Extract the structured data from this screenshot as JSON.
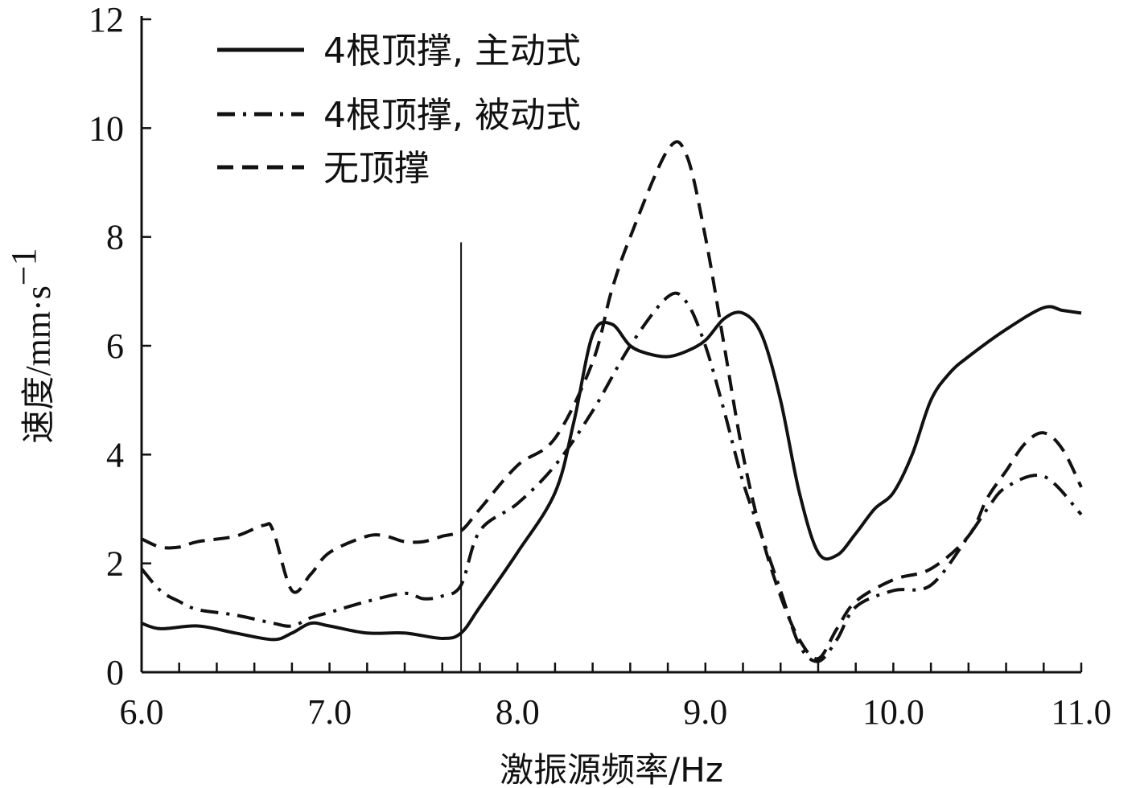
{
  "chart_data": {
    "type": "line",
    "title": "",
    "xlabel": "激振源频率/Hz",
    "ylabel_parts": {
      "cn": "速度",
      "unit": "/mm·s",
      "sup": "−1"
    },
    "xlim": [
      6.0,
      11.0
    ],
    "ylim": [
      0,
      12
    ],
    "x_ticks": [
      6.0,
      7.0,
      8.0,
      9.0,
      10.0,
      11.0
    ],
    "x_tick_labels": [
      "6.0",
      "7.0",
      "8.0",
      "9.0",
      "10.0",
      "11.0"
    ],
    "x_minor_step": 0.2,
    "y_ticks": [
      0,
      2,
      4,
      6,
      8,
      10,
      12
    ],
    "y_tick_labels": [
      "0",
      "2",
      "4",
      "6",
      "8",
      "10",
      "12"
    ],
    "grid": false,
    "legend_position": "top-left",
    "reference_line_x": 7.7,
    "series": [
      {
        "name": "4根顶撑, 主动式",
        "style": "solid",
        "x": [
          6.0,
          6.1,
          6.3,
          6.5,
          6.7,
          6.8,
          6.9,
          7.0,
          7.2,
          7.4,
          7.6,
          7.7,
          7.8,
          8.0,
          8.2,
          8.3,
          8.4,
          8.5,
          8.6,
          8.7,
          8.8,
          8.9,
          9.0,
          9.1,
          9.2,
          9.3,
          9.4,
          9.5,
          9.6,
          9.7,
          9.8,
          9.9,
          10.0,
          10.1,
          10.2,
          10.3,
          10.4,
          10.6,
          10.8,
          10.9,
          11.0
        ],
        "y": [
          0.9,
          0.8,
          0.85,
          0.72,
          0.6,
          0.72,
          0.9,
          0.85,
          0.72,
          0.72,
          0.62,
          0.72,
          1.2,
          2.2,
          3.3,
          4.6,
          6.2,
          6.4,
          6.0,
          5.85,
          5.8,
          5.9,
          6.1,
          6.5,
          6.6,
          6.2,
          5.0,
          3.3,
          2.2,
          2.15,
          2.55,
          3.0,
          3.3,
          4.0,
          5.0,
          5.5,
          5.8,
          6.3,
          6.7,
          6.65,
          6.6
        ]
      },
      {
        "name": "4根顶撑, 被动式",
        "style": "dash-dot",
        "x": [
          6.0,
          6.1,
          6.2,
          6.3,
          6.5,
          6.7,
          6.8,
          6.9,
          7.0,
          7.2,
          7.4,
          7.5,
          7.6,
          7.7,
          7.8,
          8.0,
          8.2,
          8.4,
          8.6,
          8.8,
          8.9,
          9.0,
          9.1,
          9.2,
          9.3,
          9.4,
          9.5,
          9.6,
          9.7,
          9.8,
          10.0,
          10.2,
          10.4,
          10.5,
          10.6,
          10.8,
          11.0
        ],
        "y": [
          1.9,
          1.5,
          1.3,
          1.15,
          1.05,
          0.9,
          0.85,
          1.0,
          1.1,
          1.3,
          1.45,
          1.35,
          1.4,
          1.6,
          2.6,
          3.1,
          3.8,
          4.8,
          6.0,
          6.9,
          6.8,
          6.0,
          4.8,
          3.5,
          2.5,
          1.5,
          0.5,
          0.2,
          0.6,
          1.2,
          1.5,
          1.6,
          2.5,
          3.0,
          3.4,
          3.6,
          2.9
        ]
      },
      {
        "name": "无顶撑",
        "style": "dashed",
        "x": [
          6.0,
          6.1,
          6.2,
          6.3,
          6.5,
          6.65,
          6.7,
          6.8,
          6.9,
          7.0,
          7.2,
          7.3,
          7.4,
          7.5,
          7.6,
          7.7,
          7.8,
          8.0,
          8.2,
          8.4,
          8.5,
          8.6,
          8.8,
          8.9,
          9.0,
          9.1,
          9.2,
          9.3,
          9.4,
          9.5,
          9.6,
          9.7,
          9.8,
          10.0,
          10.2,
          10.4,
          10.5,
          10.6,
          10.7,
          10.8,
          10.9,
          11.0
        ],
        "y": [
          2.45,
          2.3,
          2.3,
          2.4,
          2.5,
          2.7,
          2.6,
          1.5,
          1.8,
          2.2,
          2.5,
          2.5,
          2.4,
          2.4,
          2.5,
          2.6,
          3.0,
          3.8,
          4.3,
          5.7,
          7.0,
          8.0,
          9.6,
          9.5,
          8.0,
          6.0,
          4.0,
          2.5,
          1.4,
          0.6,
          0.25,
          0.8,
          1.3,
          1.7,
          1.9,
          2.5,
          3.2,
          3.7,
          4.2,
          4.4,
          4.1,
          3.4
        ]
      }
    ]
  }
}
